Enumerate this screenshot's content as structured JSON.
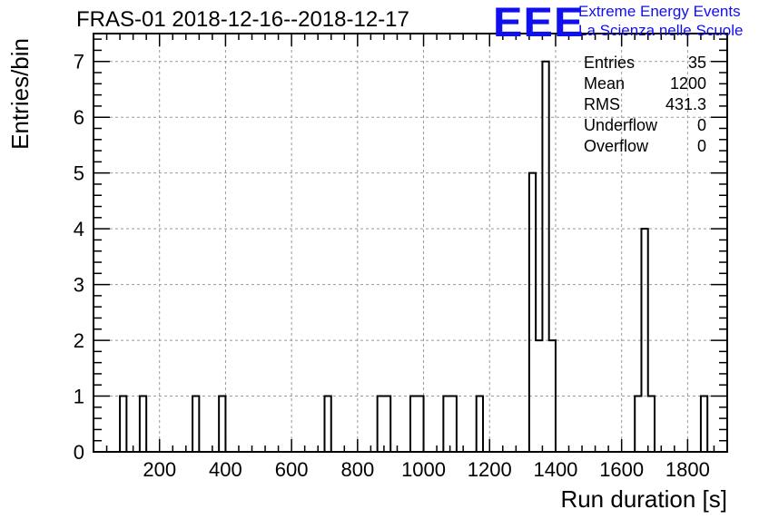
{
  "title": "FRAS-01 2018-12-16--2018-12-17",
  "logo": {
    "mark": "EEE",
    "line1": "Extreme Energy Events",
    "line2": "La Scienza nelle Scuole",
    "color": "#1010ee"
  },
  "stats": [
    {
      "label": "Entries",
      "value": "35"
    },
    {
      "label": "Mean",
      "value": "1200"
    },
    {
      "label": "RMS",
      "value": "431.3"
    },
    {
      "label": "Underflow",
      "value": "0"
    },
    {
      "label": "Overflow",
      "value": "0"
    }
  ],
  "chart_data": {
    "type": "bar",
    "histogram": true,
    "xlabel": "Run duration [s]",
    "ylabel": "Entries/bin",
    "xlim": [
      0,
      1920
    ],
    "ylim": [
      0,
      7.5
    ],
    "bin_width": 20,
    "x_ticks": [
      200,
      400,
      600,
      800,
      1000,
      1200,
      1400,
      1600,
      1800
    ],
    "y_ticks": [
      0,
      1,
      2,
      3,
      4,
      5,
      6,
      7
    ],
    "grid": true,
    "bins": [
      {
        "x0": 80,
        "x1": 100,
        "count": 1
      },
      {
        "x0": 140,
        "x1": 160,
        "count": 1
      },
      {
        "x0": 300,
        "x1": 320,
        "count": 1
      },
      {
        "x0": 380,
        "x1": 400,
        "count": 1
      },
      {
        "x0": 700,
        "x1": 720,
        "count": 1
      },
      {
        "x0": 860,
        "x1": 880,
        "count": 1
      },
      {
        "x0": 880,
        "x1": 900,
        "count": 1
      },
      {
        "x0": 960,
        "x1": 980,
        "count": 1
      },
      {
        "x0": 980,
        "x1": 1000,
        "count": 1
      },
      {
        "x0": 1060,
        "x1": 1080,
        "count": 1
      },
      {
        "x0": 1080,
        "x1": 1100,
        "count": 1
      },
      {
        "x0": 1160,
        "x1": 1180,
        "count": 1
      },
      {
        "x0": 1320,
        "x1": 1340,
        "count": 5
      },
      {
        "x0": 1340,
        "x1": 1360,
        "count": 2
      },
      {
        "x0": 1360,
        "x1": 1380,
        "count": 7
      },
      {
        "x0": 1380,
        "x1": 1400,
        "count": 2
      },
      {
        "x0": 1640,
        "x1": 1660,
        "count": 1
      },
      {
        "x0": 1660,
        "x1": 1680,
        "count": 4
      },
      {
        "x0": 1680,
        "x1": 1700,
        "count": 1
      },
      {
        "x0": 1840,
        "x1": 1860,
        "count": 1
      }
    ],
    "line_color": "#000000",
    "grid_color": "#999999"
  }
}
